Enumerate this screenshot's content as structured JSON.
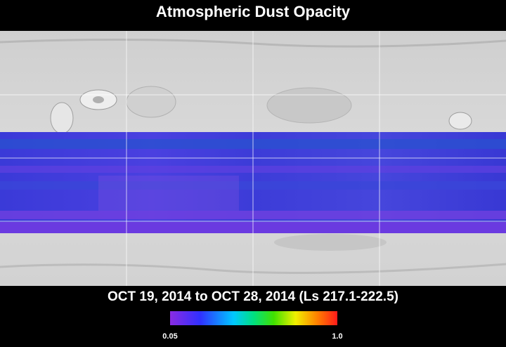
{
  "title": "Atmospheric Dust Opacity",
  "date_range": "OCT 19, 2014 to OCT 28, 2014 (Ls 217.1-222.5)",
  "colorbar": {
    "ticks": [
      0.05,
      {
        "value": 1.0,
        "label": "1.0"
      }
    ]
  }
}
